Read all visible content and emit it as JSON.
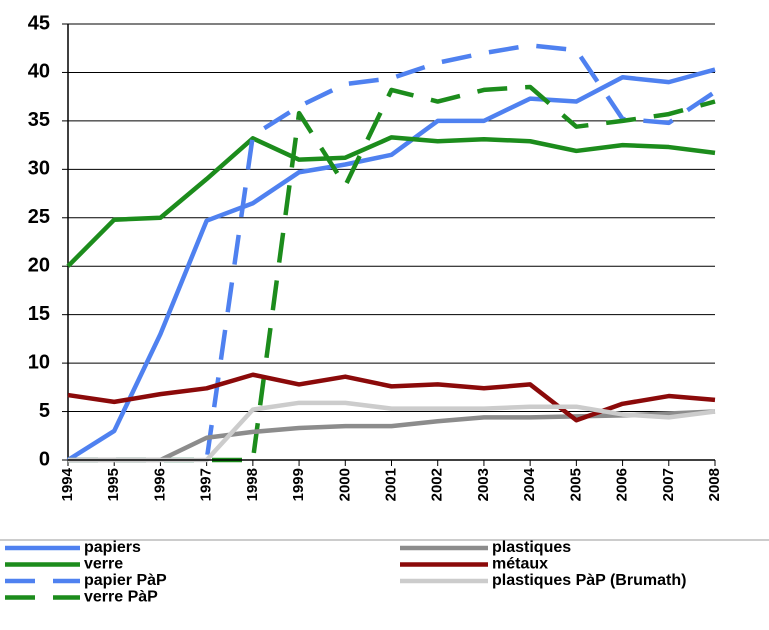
{
  "chart_data": {
    "type": "line",
    "categories": [
      "1994",
      "1995",
      "1996",
      "1997",
      "1998",
      "1999",
      "2000",
      "2001",
      "2002",
      "2003",
      "2004",
      "2005",
      "2006",
      "2007",
      "2008"
    ],
    "series": [
      {
        "name": "papiers",
        "color": "#4f81f0",
        "dashed": false,
        "values": [
          0,
          3,
          13,
          24.7,
          26.5,
          29.7,
          30.5,
          31.5,
          35,
          35,
          37.3,
          37,
          39.5,
          39,
          40.3
        ]
      },
      {
        "name": "verre",
        "color": "#1c8c1c",
        "dashed": false,
        "values": [
          20,
          24.8,
          25,
          29,
          33.2,
          31,
          31.2,
          33.3,
          32.9,
          33.1,
          32.9,
          31.9,
          32.5,
          32.3,
          31.7
        ]
      },
      {
        "name": "papier PàP",
        "color": "#4f81f0",
        "dashed": true,
        "values": [
          0,
          0,
          0,
          0,
          33.5,
          36.5,
          38.8,
          39.4,
          41,
          42,
          42.8,
          42.3,
          35.2,
          34.8,
          38
        ]
      },
      {
        "name": "verre PàP",
        "color": "#1c8c1c",
        "dashed": true,
        "values": [
          0,
          0,
          0,
          0,
          0,
          35.8,
          28.3,
          38.2,
          37,
          38.2,
          38.5,
          34.4,
          35,
          35.7,
          37
        ]
      },
      {
        "name": "plastiques",
        "color": "#8c8c8c",
        "dashed": false,
        "values": [
          0,
          0,
          0,
          2.3,
          2.9,
          3.3,
          3.5,
          3.5,
          4,
          4.4,
          4.4,
          4.5,
          4.6,
          4.8,
          5
        ]
      },
      {
        "name": "métaux",
        "color": "#8b0a0a",
        "dashed": false,
        "values": [
          6.7,
          6,
          6.8,
          7.4,
          8.8,
          7.8,
          8.6,
          7.6,
          7.8,
          7.4,
          7.8,
          4.1,
          5.8,
          6.6,
          6.2
        ]
      },
      {
        "name": "plastiques PàP (Brumath)",
        "color": "#cccccc",
        "dashed": false,
        "values": [
          0,
          0,
          0,
          0,
          5.2,
          5.9,
          5.9,
          5.3,
          5.3,
          5.3,
          5.5,
          5.5,
          4.7,
          4.4,
          5
        ]
      }
    ],
    "ylim": [
      0,
      45
    ],
    "yticks": [
      0,
      5,
      10,
      15,
      20,
      25,
      30,
      35,
      40,
      45
    ],
    "grid": true
  }
}
